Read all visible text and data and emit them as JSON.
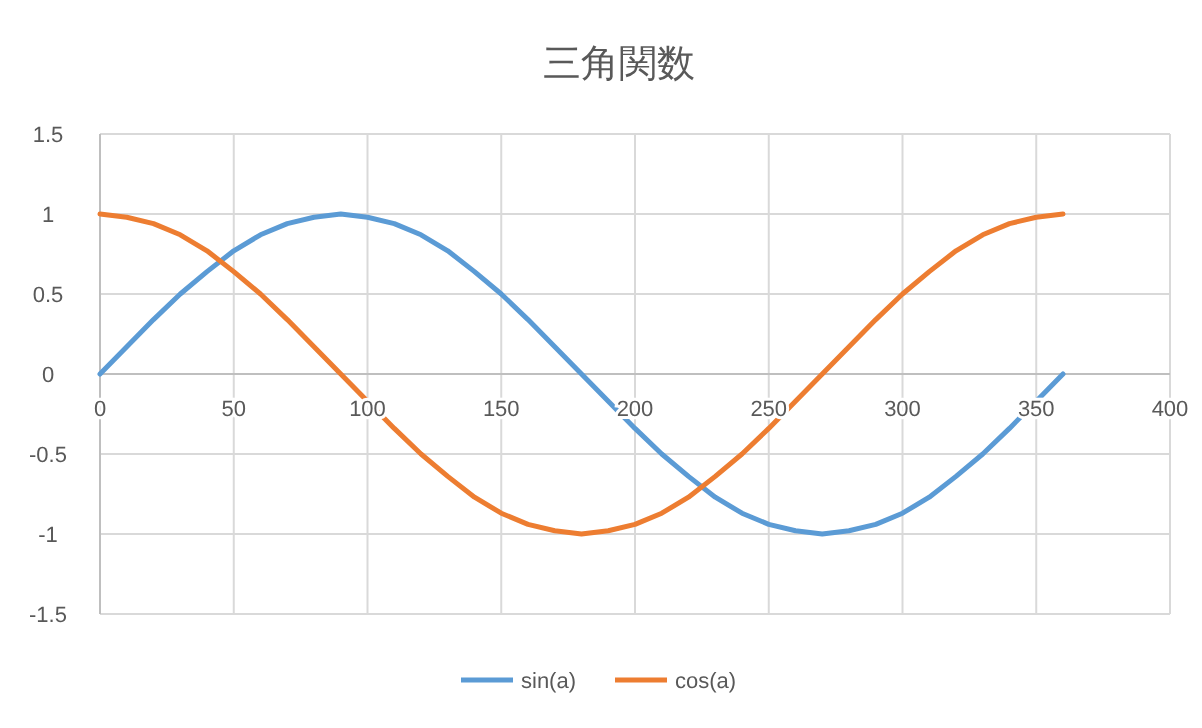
{
  "chart_data": {
    "type": "line",
    "title": "三角関数",
    "x": [
      0,
      10,
      20,
      30,
      40,
      50,
      60,
      70,
      80,
      90,
      100,
      110,
      120,
      130,
      140,
      150,
      160,
      170,
      180,
      190,
      200,
      210,
      220,
      230,
      240,
      250,
      260,
      270,
      280,
      290,
      300,
      310,
      320,
      330,
      340,
      350,
      360
    ],
    "series": [
      {
        "name": "sin(a)",
        "color": "#5b9bd5",
        "values": [
          0,
          0.17,
          0.34,
          0.5,
          0.64,
          0.77,
          0.87,
          0.94,
          0.98,
          1,
          0.98,
          0.94,
          0.87,
          0.77,
          0.64,
          0.5,
          0.34,
          0.17,
          0,
          -0.17,
          -0.34,
          -0.5,
          -0.64,
          -0.77,
          -0.87,
          -0.94,
          -0.98,
          -1,
          -0.98,
          -0.94,
          -0.87,
          -0.77,
          -0.64,
          -0.5,
          -0.34,
          -0.17,
          0
        ]
      },
      {
        "name": "cos(a)",
        "color": "#ed7d31",
        "values": [
          1,
          0.98,
          0.94,
          0.87,
          0.77,
          0.64,
          0.5,
          0.34,
          0.17,
          0,
          -0.17,
          -0.34,
          -0.5,
          -0.64,
          -0.77,
          -0.87,
          -0.94,
          -0.98,
          -1,
          -0.98,
          -0.94,
          -0.87,
          -0.77,
          -0.64,
          -0.5,
          -0.34,
          -0.17,
          0,
          0.17,
          0.34,
          0.5,
          0.64,
          0.77,
          0.87,
          0.94,
          0.98,
          1
        ]
      }
    ],
    "xlim": [
      0,
      400
    ],
    "ylim": [
      -1.5,
      1.5
    ],
    "xticks": [
      0,
      50,
      100,
      150,
      200,
      250,
      300,
      350,
      400
    ],
    "yticks": [
      -1.5,
      -1,
      -0.5,
      0,
      0.5,
      1,
      1.5
    ],
    "grid": true,
    "legend": "bottom"
  }
}
